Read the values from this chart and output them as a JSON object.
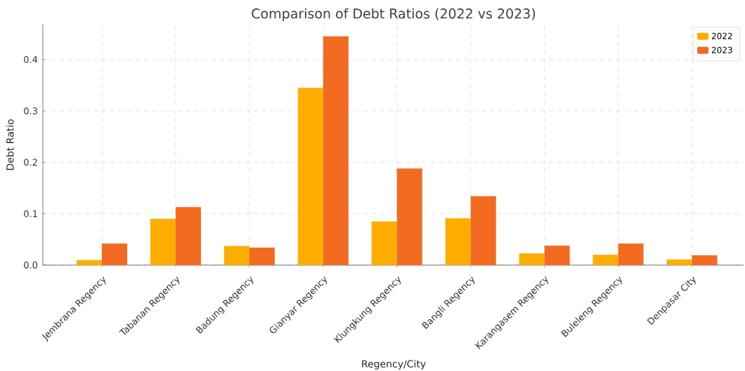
{
  "chart_data": {
    "type": "bar",
    "title": "Comparison of Debt Ratios (2022 vs 2023)",
    "xlabel": "Regency/City",
    "ylabel": "Debt Ratio",
    "categories": [
      "Jembrana Regency",
      "Tabanan Regency",
      "Badung Regency",
      "Gianyar Regency",
      "Klungkung Regency",
      "Bangli Regency",
      "Karangasem Regency",
      "Buleleng Regency",
      "Denpasar City"
    ],
    "series": [
      {
        "name": "2022",
        "color": "#ffad00",
        "values": [
          0.01,
          0.09,
          0.037,
          0.345,
          0.085,
          0.091,
          0.023,
          0.02,
          0.011
        ]
      },
      {
        "name": "2023",
        "color": "#f26b21",
        "values": [
          0.042,
          0.113,
          0.034,
          0.445,
          0.188,
          0.134,
          0.038,
          0.042,
          0.019
        ]
      }
    ],
    "ylim": [
      0,
      0.468
    ],
    "yticks": [
      {
        "value": 0,
        "label": "0.0"
      },
      {
        "value": 0.1,
        "label": "0.1"
      },
      {
        "value": 0.2,
        "label": "0.2"
      },
      {
        "value": 0.3,
        "label": "0.3"
      },
      {
        "value": 0.4,
        "label": "0.4"
      }
    ],
    "grid": true,
    "legend": "top right"
  }
}
